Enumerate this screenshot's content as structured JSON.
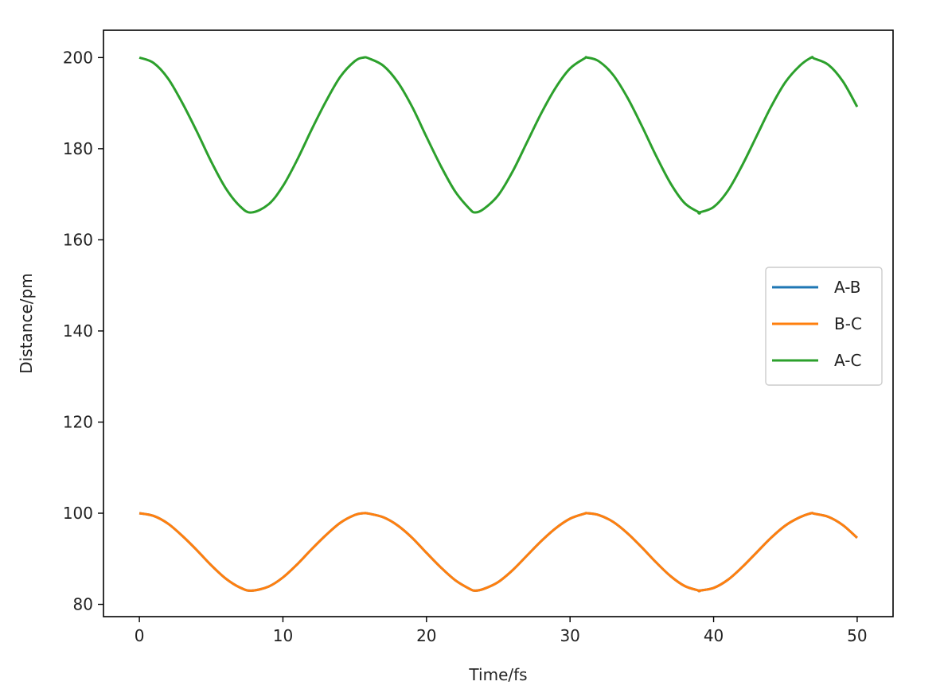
{
  "chart_data": {
    "type": "line",
    "title": "",
    "xlabel": "Time/fs",
    "ylabel": "Distance/pm",
    "xlim": [
      -2.5,
      52.5
    ],
    "ylim": [
      77.3,
      206.0
    ],
    "xticks": [
      0,
      10,
      20,
      30,
      40,
      50
    ],
    "yticks": [
      80,
      100,
      120,
      140,
      160,
      180,
      200
    ],
    "xtick_labels": [
      "0",
      "10",
      "20",
      "30",
      "40",
      "50"
    ],
    "ytick_labels": [
      "80",
      "100",
      "120",
      "140",
      "160",
      "180",
      "200"
    ],
    "grid": false,
    "legend_position": "center-right",
    "x": [
      0,
      1,
      2,
      3,
      4,
      5,
      6,
      7,
      7.8,
      9,
      10,
      11,
      12,
      13,
      14,
      15,
      15.6,
      16,
      17,
      18,
      19,
      20,
      21,
      22,
      23,
      23.4,
      24,
      25,
      26,
      27,
      28,
      29,
      30,
      31,
      31.2,
      32,
      33,
      34,
      35,
      36,
      37,
      38,
      39,
      39.0,
      40,
      41,
      42,
      43,
      44,
      45,
      46,
      46.8,
      47,
      48,
      49,
      50
    ],
    "series": [
      {
        "name": "A-B",
        "color": "#1f77b4",
        "values": [
          100.0,
          99.4,
          97.7,
          95.0,
          91.9,
          88.6,
          85.7,
          83.7,
          83.0,
          83.9,
          85.9,
          88.8,
          92.1,
          95.2,
          97.9,
          99.6,
          100.0,
          99.9,
          99.1,
          97.3,
          94.6,
          91.3,
          88.1,
          85.3,
          83.4,
          83.0,
          83.4,
          84.9,
          87.5,
          90.7,
          93.9,
          96.7,
          98.8,
          99.9,
          100.0,
          99.6,
          98.1,
          95.6,
          92.5,
          89.2,
          86.2,
          84.0,
          83.0,
          83.0,
          83.6,
          85.4,
          88.2,
          91.4,
          94.6,
          97.3,
          99.1,
          100.0,
          99.9,
          99.2,
          97.4,
          94.6
        ]
      },
      {
        "name": "B-C",
        "color": "#ff7f0e",
        "values": [
          100.0,
          99.4,
          97.7,
          95.0,
          91.9,
          88.6,
          85.7,
          83.7,
          83.0,
          83.9,
          85.9,
          88.8,
          92.1,
          95.2,
          97.9,
          99.6,
          100.0,
          99.9,
          99.1,
          97.3,
          94.6,
          91.3,
          88.1,
          85.3,
          83.4,
          83.0,
          83.4,
          84.9,
          87.5,
          90.7,
          93.9,
          96.7,
          98.8,
          99.9,
          100.0,
          99.6,
          98.1,
          95.6,
          92.5,
          89.2,
          86.2,
          84.0,
          83.0,
          83.0,
          83.6,
          85.4,
          88.2,
          91.4,
          94.6,
          97.3,
          99.1,
          100.0,
          99.9,
          99.2,
          97.4,
          94.6
        ]
      },
      {
        "name": "A-C",
        "color": "#2ca02c",
        "values": [
          200.0,
          198.8,
          195.4,
          190.0,
          183.8,
          177.2,
          171.4,
          167.4,
          166.0,
          167.8,
          171.8,
          177.6,
          184.2,
          190.4,
          195.8,
          199.2,
          200.0,
          199.8,
          198.2,
          194.6,
          189.2,
          182.6,
          176.2,
          170.6,
          166.8,
          166.0,
          166.8,
          169.8,
          175.0,
          181.4,
          187.8,
          193.4,
          197.6,
          199.8,
          200.0,
          199.2,
          196.2,
          191.2,
          185.0,
          178.4,
          172.4,
          168.0,
          166.0,
          166.0,
          167.2,
          170.8,
          176.4,
          182.8,
          189.2,
          194.6,
          198.2,
          200.0,
          199.8,
          198.4,
          194.8,
          189.2
        ]
      }
    ]
  }
}
